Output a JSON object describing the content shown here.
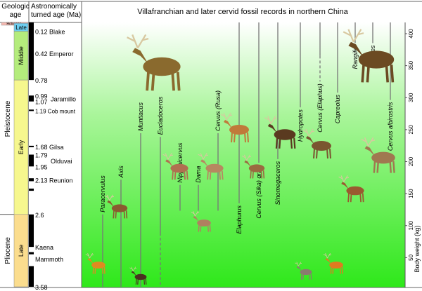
{
  "title": "Villafranchian and later cervid fossil records in northern China",
  "headers": {
    "geologic_age": [
      "Geologic",
      "age"
    ],
    "astro_age": [
      "Astronomically",
      "turned age (Ma)"
    ]
  },
  "epochs": [
    {
      "name": "Holocene",
      "from": 0,
      "to": 0.0117,
      "color": "#f4b8b0"
    },
    {
      "name": "Pleistocene",
      "from": 0.0117,
      "to": 2.6
    },
    {
      "name": "Pliocene",
      "from": 2.6,
      "to": 3.58
    }
  ],
  "stages": [
    {
      "name": "Late",
      "from": 0.0117,
      "to": 0.12,
      "color": "#6dcdef"
    },
    {
      "name": "Middle",
      "from": 0.12,
      "to": 0.78,
      "color": "#b4ec7c"
    },
    {
      "name": "Early",
      "from": 0.78,
      "to": 2.6,
      "color": "#f6f78e"
    },
    {
      "name": "Late",
      "from": 2.6,
      "to": 3.58,
      "color": "#fbdd8e"
    }
  ],
  "age_labels": [
    {
      "age": 0.12,
      "text": "0.12 Blake"
    },
    {
      "age": 0.42,
      "text": "0.42 Emperor"
    },
    {
      "age": 0.78,
      "text": "0.78"
    },
    {
      "age": 0.99,
      "text": "0.99"
    },
    {
      "age": 1.07,
      "text": "1.07"
    },
    {
      "age": 1.03,
      "text": "Jaramillo",
      "indent": true
    },
    {
      "age": 1.19,
      "text": "1.19 Cob mount",
      "small": true
    },
    {
      "age": 1.68,
      "text": "1.68 Gilsa"
    },
    {
      "age": 1.79,
      "text": "1.79"
    },
    {
      "age": 1.87,
      "text": "Olduvai",
      "indent": true
    },
    {
      "age": 1.95,
      "text": "1.95"
    },
    {
      "age": 2.13,
      "text": "2.13 Reunion"
    },
    {
      "age": 2.6,
      "text": "2.6"
    },
    {
      "age": 3.04,
      "text": "Kaena"
    },
    {
      "age": 3.2,
      "text": "Mammoth"
    },
    {
      "age": 3.58,
      "text": "3.58"
    }
  ],
  "polarity_normal": [
    [
      0,
      0.78
    ],
    [
      0.99,
      1.07
    ],
    [
      1.18,
      1.2
    ],
    [
      1.67,
      1.69
    ],
    [
      1.79,
      1.95
    ],
    [
      2.11,
      2.15
    ],
    [
      2.25,
      2.28
    ],
    [
      2.6,
      3.04
    ],
    [
      3.11,
      3.14
    ],
    [
      3.3,
      3.58
    ]
  ],
  "y_axis": {
    "label": "Body weight (kg)",
    "ticks": [
      50,
      100,
      150,
      200,
      250,
      300,
      350,
      400
    ]
  },
  "taxa": [
    {
      "name": "Paracervulus",
      "from": 2.6,
      "to": 3.58
    },
    {
      "name": "Axis",
      "from": 2.13,
      "to": 3.58
    },
    {
      "name": "Muntiacus",
      "from": 1.5,
      "to": 3.58
    },
    {
      "name": "Eucladoceros",
      "from": 1.55,
      "to": 2.85,
      "dashed_to": 3.58
    },
    {
      "name": "Nipponicervus",
      "from": 2.2,
      "to": 2.55
    },
    {
      "name": "Dama",
      "from": 2.2,
      "to": 2.55
    },
    {
      "name": "Cervus (Rusa)",
      "from": 1.5,
      "to": 2.55
    },
    {
      "name": "Elaphurus",
      "from": 0,
      "to": 2.45
    },
    {
      "name": "Cervus (Sika) grayi",
      "from": 0,
      "to": 1.9
    },
    {
      "name": "Sinomegaceros",
      "from": 0,
      "to": 1.85
    },
    {
      "name": "Hydropotes",
      "from": 0,
      "to": 1.15
    },
    {
      "name": "Cervus (Elaphus)",
      "from": 0,
      "to": 0.8,
      "dashed_from": 0.45
    },
    {
      "name": "Capreolus",
      "from": 0,
      "to": 0.95
    },
    {
      "name": "Rangifer",
      "from": 0,
      "to": 0.28
    },
    {
      "name": "Alces",
      "from": 0,
      "to": 0.28
    },
    {
      "name": "Cervus albirostris",
      "from": 0,
      "to": 1.05
    }
  ],
  "colors": {
    "gradient_top": "#ffffff",
    "gradient_bottom": "#2ee81a",
    "line": "#777777"
  }
}
